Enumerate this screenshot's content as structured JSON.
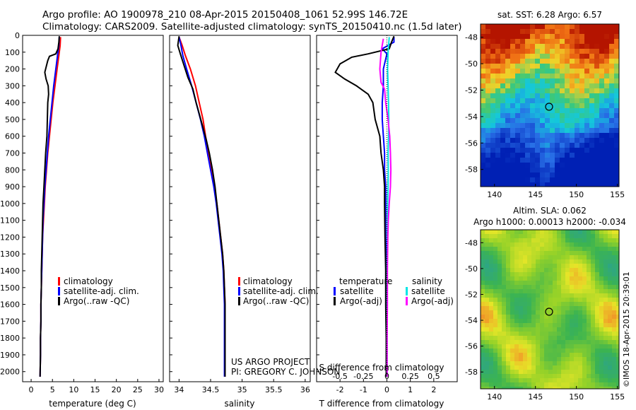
{
  "header": {
    "line1": "Argo profile: AO 1900978_210 08-Apr-2015 20150408_1061 52.99S 146.72E",
    "line2": "Climatology: CARS2009. Satellite-adjusted climatology: synTS_20150410.nc (1.5d later)"
  },
  "colors": {
    "climatology": "#ff0000",
    "satellite": "#0000ff",
    "argo": "#000000",
    "sal_sat": "#00e5e5",
    "sal_argo": "#ff00ff"
  },
  "depth_ticks": [
    "0",
    "100",
    "200",
    "300",
    "400",
    "500",
    "600",
    "700",
    "800",
    "900",
    "1000",
    "1100",
    "1200",
    "1300",
    "1400",
    "1500",
    "1600",
    "1700",
    "1800",
    "1900",
    "2000"
  ],
  "panels": {
    "temperature": {
      "xlabel": "temperature (deg C)",
      "xticks": [
        "0",
        "5",
        "10",
        "15",
        "20",
        "25",
        "30"
      ],
      "legend": [
        "climatology",
        "satellite-adj. clim.",
        "Argo(..raw -QC)"
      ]
    },
    "salinity": {
      "xlabel": "salinity",
      "xticks": [
        "34",
        "34.5",
        "35",
        "35.5",
        "36"
      ],
      "legend": [
        "climatology",
        "satellite-adj. clim.",
        "Argo(..raw -QC)"
      ],
      "credit1": "US ARGO PROJECT",
      "credit2": "PI: GREGORY C. JOHNSON"
    },
    "difference": {
      "xlabel": "T difference from climatology",
      "top_label": "S difference from climatology",
      "xticks": [
        "-2",
        "-1",
        "0",
        "1",
        "2"
      ],
      "top_ticks": [
        "-0.5",
        "-0.25",
        "0",
        "0.25",
        "0.5"
      ],
      "legend_t_title": "temperature",
      "legend_t": [
        "satellite",
        "Argo(-adj)"
      ],
      "legend_s_title": "salinity",
      "legend_s": [
        "satellite",
        "Argo(-adj)"
      ]
    }
  },
  "maps": {
    "sst": {
      "title": "sat. SST: 6.28 Argo: 6.57",
      "yticks": [
        "-48",
        "-50",
        "-52",
        "-54",
        "-56",
        "-58"
      ],
      "xticks": [
        "140",
        "145",
        "150",
        "155"
      ]
    },
    "sla": {
      "title1": "Altim. SLA: 0.062",
      "title2": "Argo h1000: 0.00013 h2000: -0.034",
      "yticks": [
        "-48",
        "-50",
        "-52",
        "-54",
        "-56",
        "-58"
      ],
      "xticks": [
        "140",
        "145",
        "150",
        "155"
      ]
    },
    "stamp": "©IMOS 18-Apr-2015 20:39:01"
  },
  "chart_data": [
    {
      "type": "line",
      "xlabel": "temperature (deg C)",
      "ylabel": "",
      "xlim": [
        -2,
        31
      ],
      "ylim": [
        2060,
        0
      ],
      "series": [
        {
          "name": "climatology",
          "points": [
            [
              6.9,
              10
            ],
            [
              6.8,
              60
            ],
            [
              6.5,
              120
            ],
            [
              6.1,
              200
            ],
            [
              5.6,
              300
            ],
            [
              5.1,
              400
            ],
            [
              4.7,
              500
            ],
            [
              4.3,
              600
            ],
            [
              3.9,
              700
            ],
            [
              3.6,
              800
            ],
            [
              3.3,
              900
            ],
            [
              3.1,
              1000
            ],
            [
              2.9,
              1100
            ],
            [
              2.7,
              1200
            ],
            [
              2.6,
              1300
            ],
            [
              2.5,
              1400
            ],
            [
              2.4,
              1500
            ],
            [
              2.3,
              1600
            ],
            [
              2.3,
              1700
            ],
            [
              2.2,
              1800
            ],
            [
              2.2,
              1900
            ],
            [
              2.1,
              2030
            ]
          ]
        },
        {
          "name": "satellite-adj. clim.",
          "points": [
            [
              6.6,
              10
            ],
            [
              6.5,
              60
            ],
            [
              6.2,
              120
            ],
            [
              5.8,
              200
            ],
            [
              5.3,
              300
            ],
            [
              4.9,
              400
            ],
            [
              4.5,
              500
            ],
            [
              4.1,
              600
            ],
            [
              3.8,
              700
            ],
            [
              3.5,
              800
            ],
            [
              3.2,
              900
            ],
            [
              3.0,
              1000
            ],
            [
              2.8,
              1100
            ],
            [
              2.7,
              1200
            ],
            [
              2.6,
              1300
            ],
            [
              2.5,
              1400
            ],
            [
              2.4,
              1500
            ],
            [
              2.3,
              1600
            ],
            [
              2.3,
              1700
            ],
            [
              2.2,
              1800
            ],
            [
              2.2,
              1900
            ],
            [
              2.1,
              2030
            ]
          ]
        },
        {
          "name": "Argo(..raw -QC)",
          "points": [
            [
              6.6,
              5
            ],
            [
              6.5,
              40
            ],
            [
              6.3,
              80
            ],
            [
              5.8,
              110
            ],
            [
              4.3,
              125
            ],
            [
              3.9,
              150
            ],
            [
              3.6,
              180
            ],
            [
              3.2,
              220
            ],
            [
              3.5,
              260
            ],
            [
              4.0,
              300
            ],
            [
              4.1,
              350
            ],
            [
              3.9,
              400
            ],
            [
              3.8,
              500
            ],
            [
              3.7,
              600
            ],
            [
              3.4,
              700
            ],
            [
              3.2,
              800
            ],
            [
              3.0,
              900
            ],
            [
              2.8,
              1000
            ],
            [
              2.7,
              1100
            ],
            [
              2.6,
              1200
            ],
            [
              2.5,
              1300
            ],
            [
              2.4,
              1400
            ],
            [
              2.4,
              1500
            ],
            [
              2.3,
              1600
            ],
            [
              2.3,
              1700
            ],
            [
              2.2,
              1800
            ],
            [
              2.2,
              1900
            ],
            [
              2.1,
              2030
            ]
          ]
        }
      ]
    },
    {
      "type": "line",
      "xlabel": "salinity",
      "ylabel": "",
      "xlim": [
        33.85,
        36.08
      ],
      "ylim": [
        2060,
        0
      ],
      "series": [
        {
          "name": "climatology",
          "points": [
            [
              34.0,
              10
            ],
            [
              34.05,
              60
            ],
            [
              34.1,
              120
            ],
            [
              34.18,
              200
            ],
            [
              34.26,
              300
            ],
            [
              34.32,
              400
            ],
            [
              34.38,
              500
            ],
            [
              34.42,
              600
            ],
            [
              34.47,
              700
            ],
            [
              34.52,
              800
            ],
            [
              34.56,
              900
            ],
            [
              34.6,
              1000
            ],
            [
              34.63,
              1100
            ],
            [
              34.66,
              1200
            ],
            [
              34.69,
              1300
            ],
            [
              34.71,
              1400
            ],
            [
              34.72,
              1500
            ],
            [
              34.73,
              1600
            ],
            [
              34.73,
              1800
            ],
            [
              34.73,
              2030
            ]
          ]
        },
        {
          "name": "satellite-adj. clim.",
          "points": [
            [
              34.0,
              10
            ],
            [
              34.03,
              60
            ],
            [
              34.06,
              120
            ],
            [
              34.12,
              200
            ],
            [
              34.2,
              300
            ],
            [
              34.27,
              400
            ],
            [
              34.34,
              500
            ],
            [
              34.4,
              600
            ],
            [
              34.45,
              700
            ],
            [
              34.5,
              800
            ],
            [
              34.55,
              900
            ],
            [
              34.59,
              1000
            ],
            [
              34.62,
              1100
            ],
            [
              34.65,
              1200
            ],
            [
              34.68,
              1300
            ],
            [
              34.7,
              1400
            ],
            [
              34.71,
              1500
            ],
            [
              34.72,
              1600
            ],
            [
              34.72,
              1800
            ],
            [
              34.72,
              2030
            ]
          ]
        },
        {
          "name": "Argo(..raw -QC)",
          "points": [
            [
              34.0,
              5
            ],
            [
              33.98,
              60
            ],
            [
              34.02,
              110
            ],
            [
              34.08,
              180
            ],
            [
              34.14,
              250
            ],
            [
              34.22,
              320
            ],
            [
              34.27,
              400
            ],
            [
              34.33,
              480
            ],
            [
              34.38,
              550
            ],
            [
              34.43,
              620
            ],
            [
              34.48,
              700
            ],
            [
              34.53,
              800
            ],
            [
              34.57,
              900
            ],
            [
              34.6,
              1000
            ],
            [
              34.63,
              1100
            ],
            [
              34.66,
              1200
            ],
            [
              34.69,
              1300
            ],
            [
              34.71,
              1400
            ],
            [
              34.72,
              1500
            ],
            [
              34.73,
              1600
            ],
            [
              34.73,
              1800
            ],
            [
              34.73,
              2030
            ]
          ]
        }
      ]
    },
    {
      "type": "line",
      "xlabel": "T difference from climatology",
      "ylabel": "",
      "xlim": [
        -3,
        3
      ],
      "ylim": [
        2060,
        0
      ],
      "series": [
        {
          "name": "temperature satellite",
          "points": [
            [
              0.3,
              10
            ],
            [
              0.3,
              40
            ],
            [
              -0.2,
              80
            ],
            [
              0,
              110
            ],
            [
              -0.15,
              200
            ],
            [
              -0.15,
              300
            ],
            [
              -0.2,
              400
            ],
            [
              -0.2,
              500
            ],
            [
              -0.15,
              600
            ],
            [
              -0.1,
              700
            ],
            [
              -0.1,
              800
            ],
            [
              -0.05,
              900
            ],
            [
              -0.05,
              1000
            ],
            [
              -0.05,
              1200
            ],
            [
              0,
              1400
            ],
            [
              0,
              1600
            ],
            [
              0,
              1800
            ],
            [
              0,
              2030
            ]
          ]
        },
        {
          "name": "temperature Argo(-adj)",
          "points": [
            [
              0.3,
              5
            ],
            [
              0.2,
              40
            ],
            [
              0.1,
              80
            ],
            [
              -0.8,
              110
            ],
            [
              -1.5,
              130
            ],
            [
              -2,
              170
            ],
            [
              -2.2,
              220
            ],
            [
              -1.8,
              260
            ],
            [
              -1.3,
              300
            ],
            [
              -0.8,
              350
            ],
            [
              -0.6,
              400
            ],
            [
              -0.5,
              500
            ],
            [
              -0.3,
              600
            ],
            [
              -0.25,
              700
            ],
            [
              -0.15,
              800
            ],
            [
              -0.1,
              900
            ],
            [
              -0.1,
              1000
            ],
            [
              -0.08,
              1200
            ],
            [
              -0.05,
              1400
            ],
            [
              -0.05,
              1600
            ],
            [
              -0.03,
              1800
            ],
            [
              -0.03,
              2030
            ]
          ]
        },
        {
          "name": "salinity satellite",
          "points": [
            [
              0.1,
              10
            ],
            [
              0.05,
              100
            ],
            [
              0.03,
              200
            ],
            [
              0.05,
              300
            ],
            [
              0.07,
              400
            ],
            [
              0.08,
              500
            ],
            [
              0.07,
              600
            ],
            [
              0.05,
              700
            ],
            [
              0.06,
              800
            ],
            [
              0.05,
              900
            ],
            [
              0.03,
              1000
            ],
            [
              0.02,
              1200
            ],
            [
              0.01,
              1400
            ],
            [
              0.01,
              1600
            ],
            [
              0.01,
              1800
            ],
            [
              0.01,
              2030
            ]
          ]
        },
        {
          "name": "salinity Argo(-adj)",
          "points": [
            [
              -0.15,
              20
            ],
            [
              -0.25,
              100
            ],
            [
              -0.3,
              200
            ],
            [
              -0.25,
              280
            ],
            [
              -0.1,
              320
            ],
            [
              -0.05,
              400
            ],
            [
              0.05,
              500
            ],
            [
              0.12,
              600
            ],
            [
              0.15,
              700
            ],
            [
              0.17,
              800
            ],
            [
              0.15,
              900
            ],
            [
              0.1,
              1000
            ],
            [
              0.06,
              1100
            ],
            [
              0.04,
              1200
            ],
            [
              0.03,
              1300
            ],
            [
              0.02,
              1400
            ],
            [
              0.02,
              1600
            ],
            [
              0.01,
              1800
            ],
            [
              0.01,
              2030
            ]
          ]
        }
      ]
    }
  ]
}
